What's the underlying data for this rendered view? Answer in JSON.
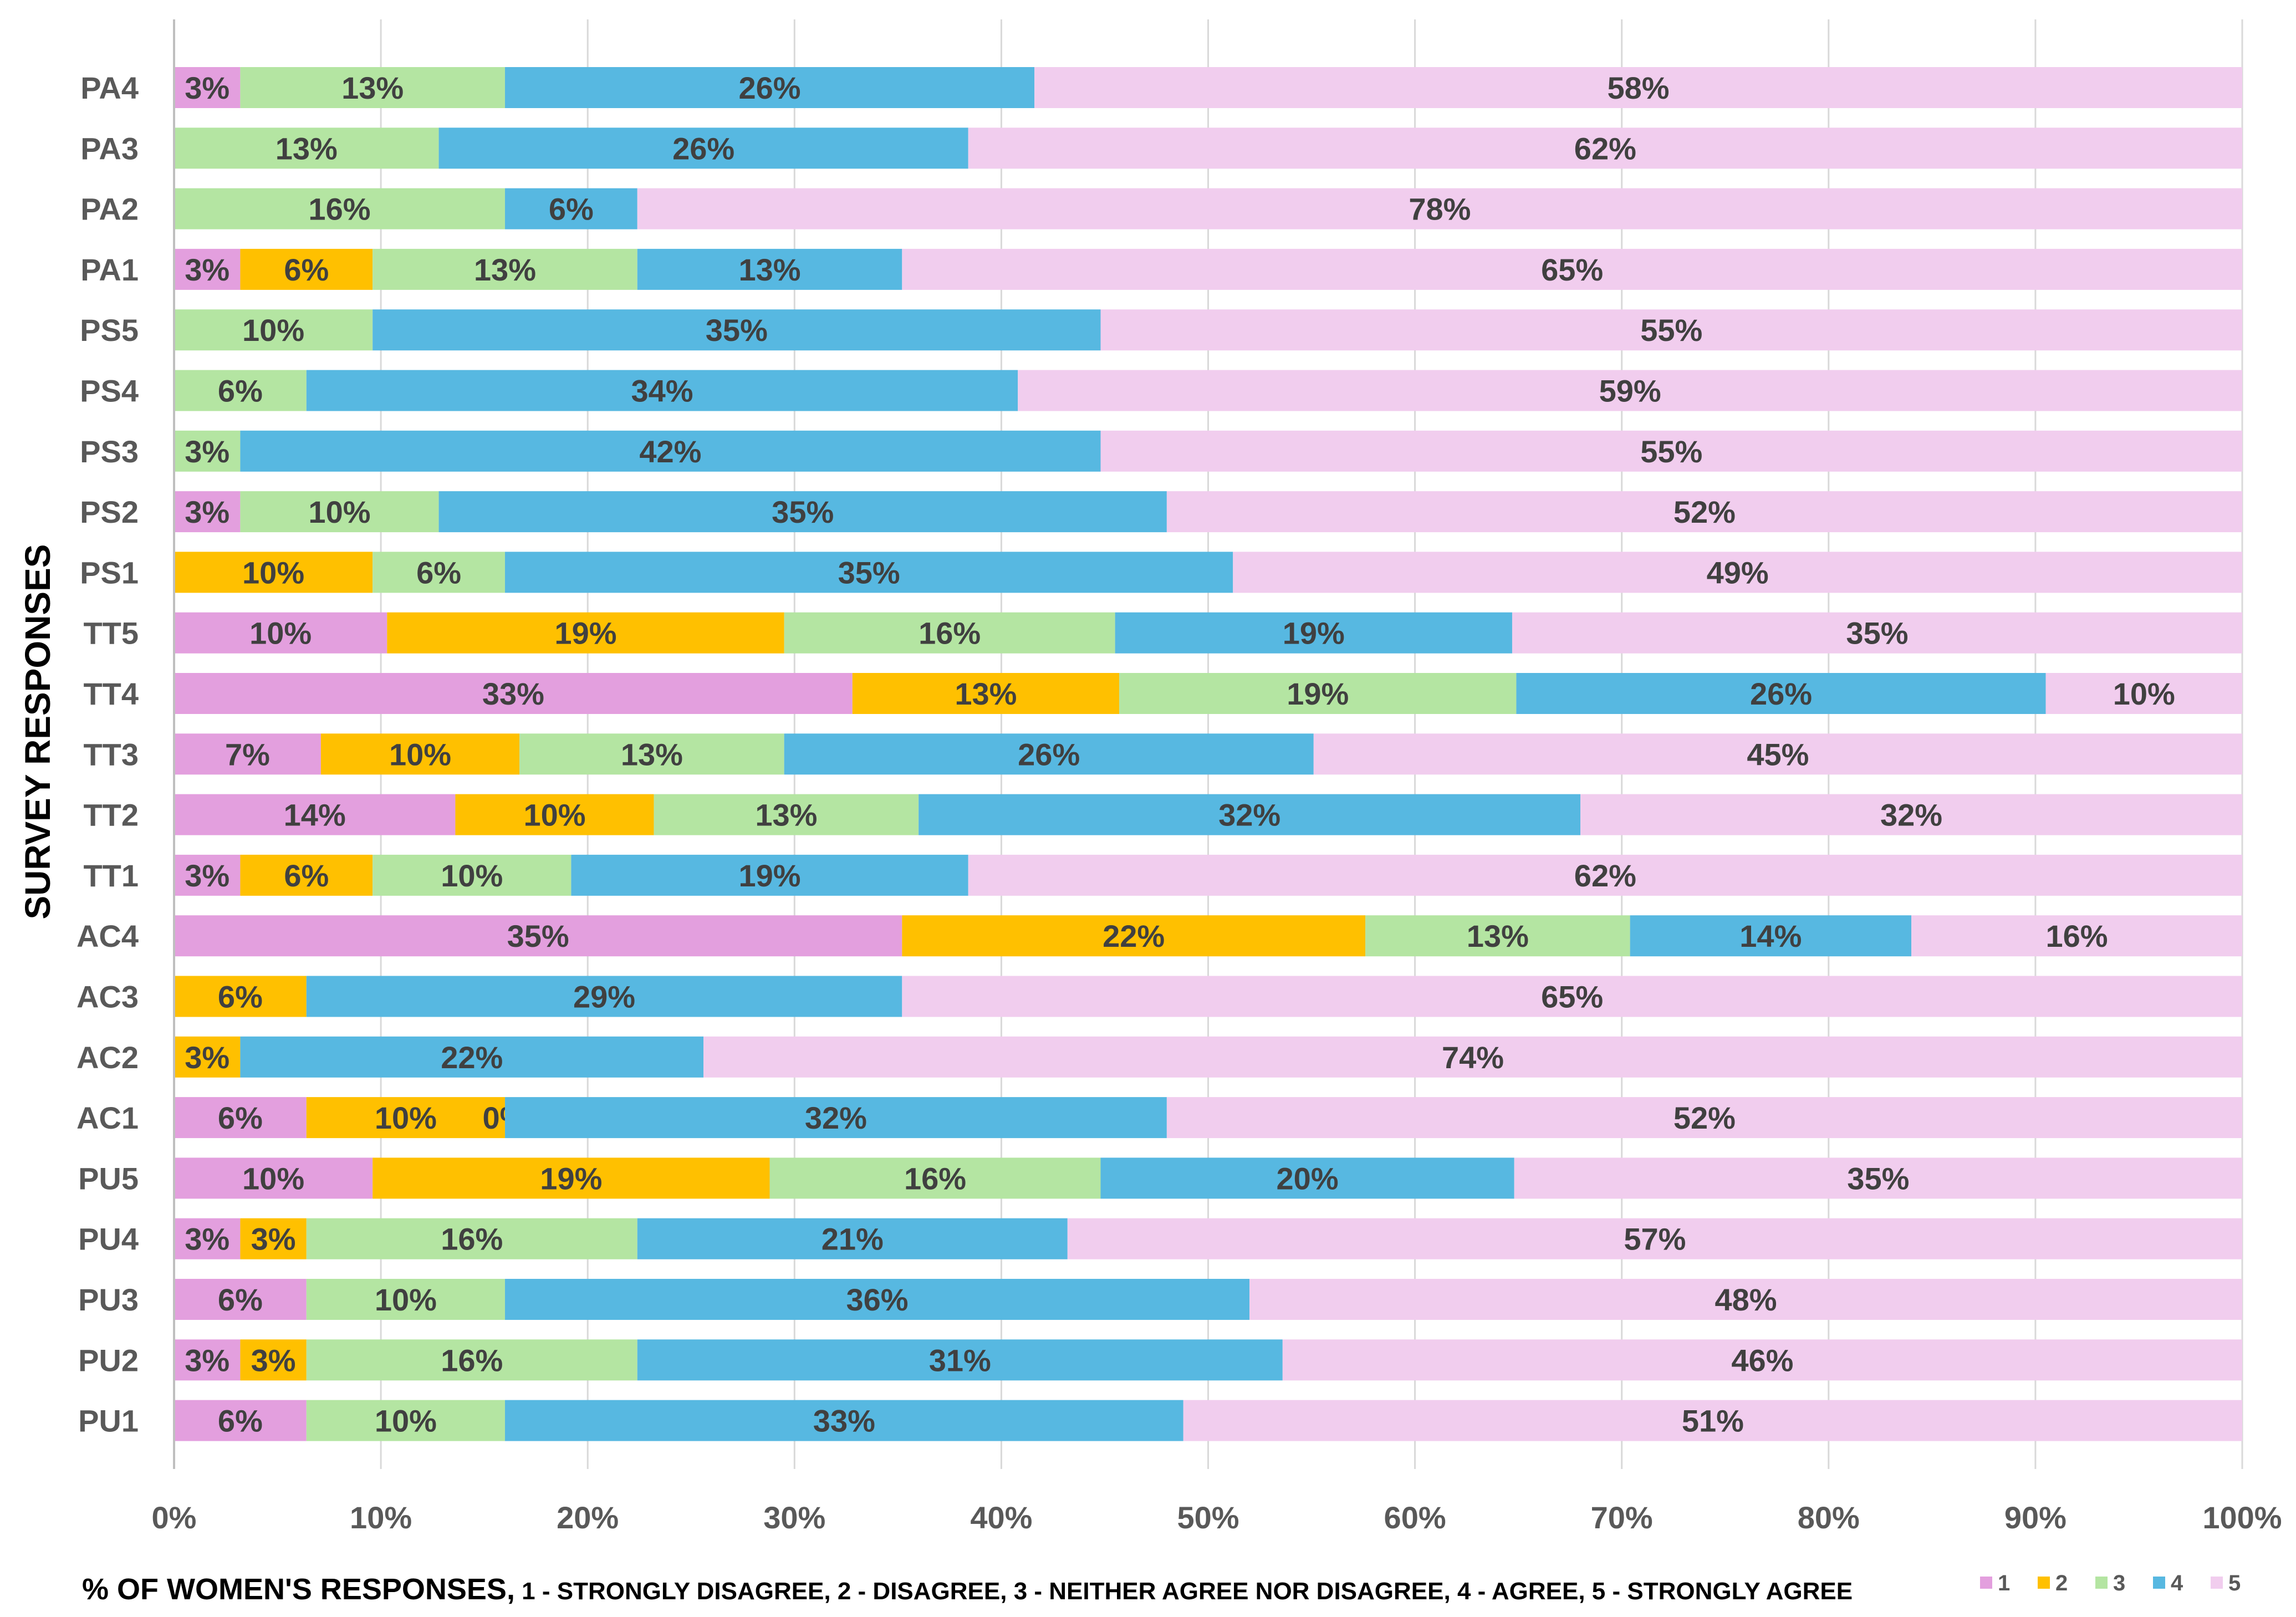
{
  "chart_data": {
    "type": "bar",
    "orientation": "horizontal",
    "stacked": "percent",
    "y_title": "SURVEY RESPONSES",
    "x_title_main": "% OF  WOMEN'S RESPONSES,",
    "x_title_detail": " 1 - STRONGLY DISAGREE, 2 - DISAGREE, 3 - NEITHER AGREE NOR DISAGREE, 4 - AGREE, 5 - STRONGLY AGREE",
    "xlim": [
      0,
      100
    ],
    "x_ticks": [
      "0%",
      "10%",
      "20%",
      "30%",
      "40%",
      "50%",
      "60%",
      "70%",
      "80%",
      "90%",
      "100%"
    ],
    "grid": true,
    "legend_position": "bottom-right",
    "categories": [
      "PA4",
      "PA3",
      "PA2",
      "PA1",
      "PS5",
      "PS4",
      "PS3",
      "PS2",
      "PS1",
      "TT5",
      "TT4",
      "TT3",
      "TT2",
      "TT1",
      "AC4",
      "AC3",
      "AC2",
      "AC1",
      "PU5",
      "PU4",
      "PU3",
      "PU2",
      "PU1"
    ],
    "series": [
      {
        "name": "1",
        "color": "#E39FDE",
        "values": [
          3.2,
          0,
          0,
          3.2,
          0,
          0,
          0,
          3.2,
          0,
          10.3,
          32.8,
          7.1,
          13.6,
          3.2,
          35.2,
          0,
          0,
          6.4,
          9.6,
          3.2,
          6.4,
          3.2,
          6.4
        ],
        "labels": [
          "3%",
          "",
          "",
          "3%",
          "",
          "",
          "",
          "3%",
          "",
          "10%",
          "33%",
          "7%",
          "14%",
          "3%",
          "35%",
          "",
          "",
          "6%",
          "10%",
          "3%",
          "6%",
          "3%",
          "6%"
        ]
      },
      {
        "name": "2",
        "color": "#FFC000",
        "values": [
          0,
          0,
          0,
          6.4,
          0,
          0,
          0,
          0,
          9.6,
          19.2,
          12.9,
          9.6,
          9.6,
          6.4,
          22.4,
          6.4,
          3.2,
          9.6,
          19.2,
          3.2,
          0,
          3.2,
          0
        ],
        "labels": [
          "",
          "",
          "",
          "6%",
          "",
          "",
          "",
          "",
          "10%",
          "19%",
          "13%",
          "10%",
          "10%",
          "6%",
          "22%",
          "6%",
          "3%",
          "10%",
          "19%",
          "3%",
          "",
          "3%",
          ""
        ]
      },
      {
        "name": "3",
        "color": "#B4E5A2",
        "values": [
          12.8,
          12.8,
          16,
          12.8,
          9.6,
          6.4,
          3.2,
          9.6,
          6.4,
          16,
          19.2,
          12.8,
          12.8,
          9.6,
          12.8,
          0,
          0,
          0,
          16,
          16,
          9.6,
          16,
          9.6
        ],
        "labels": [
          "13%",
          "13%",
          "16%",
          "13%",
          "10%",
          "6%",
          "3%",
          "10%",
          "6%",
          "16%",
          "19%",
          "13%",
          "13%",
          "10%",
          "13%",
          "",
          "",
          "0%",
          "16%",
          "16%",
          "10%",
          "16%",
          "10%"
        ]
      },
      {
        "name": "4",
        "color": "#57B8E1",
        "values": [
          25.6,
          25.6,
          6.4,
          12.8,
          35.2,
          34.4,
          41.6,
          35.2,
          35.2,
          19.2,
          25.6,
          25.6,
          32,
          19.2,
          13.6,
          28.8,
          22.4,
          32,
          20,
          20.8,
          36,
          31.2,
          32.8
        ],
        "labels": [
          "26%",
          "26%",
          "6%",
          "13%",
          "35%",
          "34%",
          "42%",
          "35%",
          "35%",
          "19%",
          "26%",
          "26%",
          "32%",
          "19%",
          "14%",
          "29%",
          "22%",
          "32%",
          "20%",
          "21%",
          "36%",
          "31%",
          "33%"
        ]
      },
      {
        "name": "5",
        "color": "#F1CDEE",
        "values": [
          58.4,
          61.6,
          77.6,
          64.8,
          55.2,
          59.2,
          55.2,
          52,
          48.8,
          35.3,
          9.5,
          44.9,
          32,
          61.6,
          16,
          64.8,
          74.4,
          52,
          35.2,
          56.8,
          48,
          46.4,
          51.2
        ],
        "labels": [
          "58%",
          "62%",
          "78%",
          "65%",
          "55%",
          "59%",
          "55%",
          "52%",
          "49%",
          "35%",
          "10%",
          "45%",
          "32%",
          "62%",
          "16%",
          "65%",
          "74%",
          "52%",
          "35%",
          "57%",
          "48%",
          "46%",
          "51%"
        ]
      }
    ]
  }
}
